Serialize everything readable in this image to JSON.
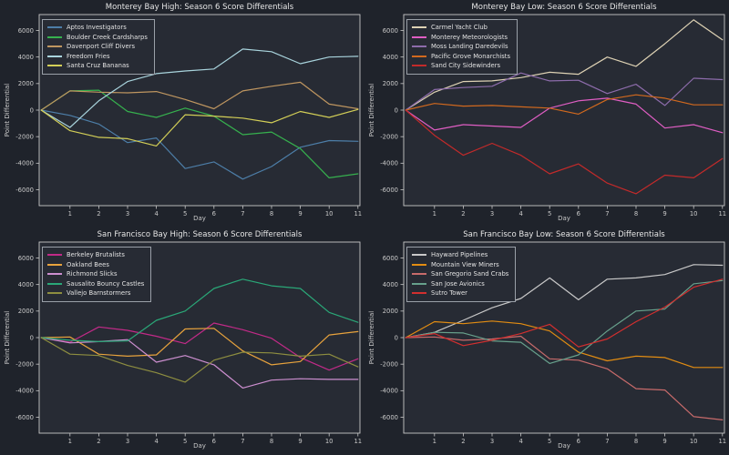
{
  "figure": {
    "background": "#1f232b",
    "axes_background": "#272b34",
    "spine_color": "#c8c8c8",
    "tick_label_color": "#c8c8c8",
    "title_color": "#e6e6e6"
  },
  "chart_data": [
    {
      "type": "line",
      "title": "Monterey Bay High: Season 6 Score Differentials",
      "xlabel": "Day",
      "ylabel": "Point Differential",
      "x": [
        0,
        1,
        2,
        3,
        4,
        5,
        6,
        7,
        8,
        9,
        10,
        11
      ],
      "xticks": [
        1,
        2,
        3,
        4,
        5,
        6,
        7,
        8,
        9,
        10,
        11
      ],
      "yticks": [
        -6000,
        -4000,
        -2000,
        0,
        2000,
        4000,
        6000
      ],
      "xlim": [
        -0.07,
        11.07
      ],
      "ylim": [
        -7200,
        7200
      ],
      "grid": false,
      "legend_position": "upper left",
      "series": [
        {
          "name": "Aptos Investigators",
          "color": "#4d7ea8",
          "values": [
            0,
            -400,
            -1050,
            -2450,
            -2100,
            -4400,
            -3900,
            -5200,
            -4250,
            -2800,
            -2300,
            -2350
          ]
        },
        {
          "name": "Boulder Creek Cardsharps",
          "color": "#36b14e",
          "values": [
            0,
            1450,
            1500,
            -100,
            -550,
            150,
            -450,
            -1850,
            -1650,
            -2900,
            -5100,
            -4800
          ]
        },
        {
          "name": "Davenport Cliff Divers",
          "color": "#bf9660",
          "values": [
            0,
            1450,
            1350,
            1300,
            1400,
            800,
            100,
            1450,
            1800,
            2100,
            450,
            100
          ]
        },
        {
          "name": "Freedom Fries",
          "color": "#a9d4dd",
          "values": [
            0,
            -1300,
            700,
            2150,
            2750,
            2950,
            3100,
            4600,
            4400,
            3500,
            4000,
            4050
          ]
        },
        {
          "name": "Santa Cruz Bananas",
          "color": "#d3cf57",
          "values": [
            0,
            -1550,
            -2050,
            -2150,
            -2700,
            -350,
            -450,
            -600,
            -950,
            -100,
            -550,
            50
          ]
        }
      ]
    },
    {
      "type": "line",
      "title": "Monterey Bay Low: Season 6 Score Differentials",
      "xlabel": "Day",
      "ylabel": "Point Differential",
      "x": [
        0,
        1,
        2,
        3,
        4,
        5,
        6,
        7,
        8,
        9,
        10,
        11
      ],
      "xticks": [
        1,
        2,
        3,
        4,
        5,
        6,
        7,
        8,
        9,
        10,
        11
      ],
      "yticks": [
        -6000,
        -4000,
        -2000,
        0,
        2000,
        4000,
        6000
      ],
      "xlim": [
        -0.07,
        11.07
      ],
      "ylim": [
        -7200,
        7200
      ],
      "grid": false,
      "legend_position": "upper left",
      "series": [
        {
          "name": "Carmel Yacht Club",
          "color": "#ded2b4",
          "values": [
            0,
            1350,
            2150,
            2200,
            2450,
            2850,
            2700,
            4000,
            3300,
            5000,
            6800,
            5300
          ]
        },
        {
          "name": "Monterey Meteorologists",
          "color": "#e05ec4",
          "values": [
            0,
            -1500,
            -1100,
            -1200,
            -1300,
            150,
            700,
            900,
            450,
            -1350,
            -1100,
            -1700
          ]
        },
        {
          "name": "Moss Landing Daredevils",
          "color": "#8d6cab",
          "values": [
            0,
            1550,
            1700,
            1800,
            2800,
            2200,
            2250,
            1250,
            1950,
            350,
            2400,
            2300
          ]
        },
        {
          "name": "Pacific Grove Monarchists",
          "color": "#d2691e",
          "values": [
            0,
            500,
            300,
            350,
            250,
            150,
            -300,
            800,
            1150,
            900,
            400,
            400
          ]
        },
        {
          "name": "Sand City Sidewinders",
          "color": "#c32a2a",
          "values": [
            0,
            -1900,
            -3400,
            -2500,
            -3400,
            -4800,
            -4050,
            -5500,
            -6300,
            -4900,
            -5100,
            -3650
          ]
        }
      ]
    },
    {
      "type": "line",
      "title": "San Francisco Bay High: Season 6 Score Differentials",
      "xlabel": "Day",
      "ylabel": "Point Differential",
      "x": [
        0,
        1,
        2,
        3,
        4,
        5,
        6,
        7,
        8,
        9,
        10,
        11
      ],
      "xticks": [
        1,
        2,
        3,
        4,
        5,
        6,
        7,
        8,
        9,
        10,
        11
      ],
      "yticks": [
        -6000,
        -4000,
        -2000,
        0,
        2000,
        4000,
        6000
      ],
      "xlim": [
        -0.07,
        11.07
      ],
      "ylim": [
        -7200,
        7200
      ],
      "grid": false,
      "legend_position": "upper left",
      "series": [
        {
          "name": "Berkeley Brutalists",
          "color": "#c22a88",
          "values": [
            0,
            -350,
            800,
            550,
            100,
            -450,
            1100,
            600,
            -50,
            -1500,
            -2450,
            -1600
          ]
        },
        {
          "name": "Oakland Bees",
          "color": "#e8a33d",
          "values": [
            0,
            50,
            -1250,
            -1400,
            -1300,
            650,
            700,
            -1000,
            -2050,
            -1800,
            200,
            450
          ]
        },
        {
          "name": "Richmond Slicks",
          "color": "#cd8fd0",
          "values": [
            0,
            -400,
            -300,
            -150,
            -1850,
            -1350,
            -2050,
            -3800,
            -3200,
            -3100,
            -3150,
            -3150
          ]
        },
        {
          "name": "Sausalito Bouncy Castles",
          "color": "#2aa878",
          "values": [
            0,
            -200,
            -300,
            -250,
            1300,
            2000,
            3700,
            4400,
            3900,
            3700,
            1900,
            1150
          ]
        },
        {
          "name": "Vallejo Barnstormers",
          "color": "#8e8e40",
          "values": [
            0,
            -1250,
            -1350,
            -2100,
            -2650,
            -3350,
            -1700,
            -1100,
            -1150,
            -1400,
            -1250,
            -2200
          ]
        }
      ]
    },
    {
      "type": "line",
      "title": "San Francisco Bay Low: Season 6 Score Differentials",
      "xlabel": "Day",
      "ylabel": "Point Differential",
      "x": [
        0,
        1,
        2,
        3,
        4,
        5,
        6,
        7,
        8,
        9,
        10,
        11
      ],
      "xticks": [
        1,
        2,
        3,
        4,
        5,
        6,
        7,
        8,
        9,
        10,
        11
      ],
      "yticks": [
        -6000,
        -4000,
        -2000,
        0,
        2000,
        4000,
        6000
      ],
      "xlim": [
        -0.07,
        11.07
      ],
      "ylim": [
        -7200,
        7200
      ],
      "grid": false,
      "legend_position": "upper left",
      "series": [
        {
          "name": "Hayward Pipelines",
          "color": "#c9c9c9",
          "values": [
            0,
            400,
            1300,
            2250,
            2950,
            4500,
            2850,
            4400,
            4500,
            4750,
            5500,
            5450
          ]
        },
        {
          "name": "Mountain View Miners",
          "color": "#e38d12",
          "values": [
            0,
            1200,
            1050,
            1250,
            1050,
            500,
            -1100,
            -1750,
            -1400,
            -1500,
            -2250,
            -2250
          ]
        },
        {
          "name": "San Gregorio Sand Crabs",
          "color": "#c86b6b",
          "values": [
            0,
            50,
            -200,
            -100,
            100,
            -1600,
            -1700,
            -2350,
            -3850,
            -3950,
            -5950,
            -6200
          ]
        },
        {
          "name": "San Jose Avionics",
          "color": "#67a18c",
          "values": [
            0,
            400,
            350,
            -250,
            -350,
            -1950,
            -1300,
            500,
            2000,
            2150,
            4050,
            4300
          ]
        },
        {
          "name": "Sutro Tower",
          "color": "#d32f2f",
          "values": [
            0,
            300,
            -600,
            -200,
            300,
            1000,
            -700,
            -100,
            1200,
            2300,
            3800,
            4400
          ]
        }
      ]
    }
  ]
}
